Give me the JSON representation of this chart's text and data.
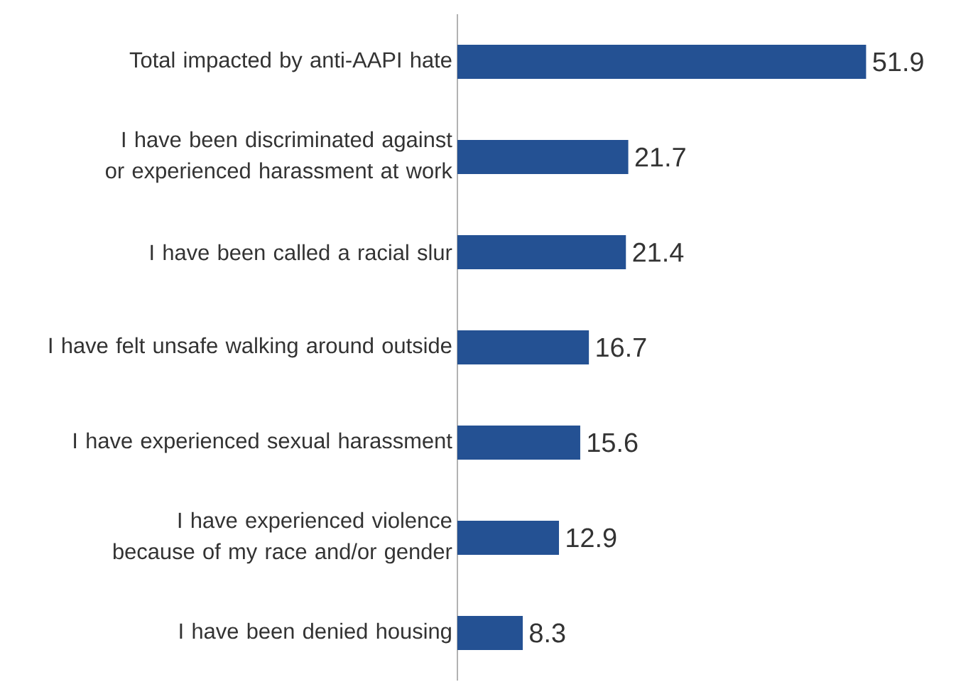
{
  "chart_data": {
    "type": "bar",
    "orientation": "horizontal",
    "categories": [
      "Total impacted by anti-AAPI hate",
      "I have been discriminated against or experienced harassment at work",
      "I have been called a racial slur",
      "I have felt unsafe walking around outside",
      "I have experienced sexual harassment",
      "I have experienced violence because of my race and/or gender",
      "I have been denied housing"
    ],
    "values": [
      51.9,
      21.7,
      21.4,
      16.7,
      15.6,
      12.9,
      8.3
    ],
    "color": "#245193",
    "data_labels": true
  }
}
